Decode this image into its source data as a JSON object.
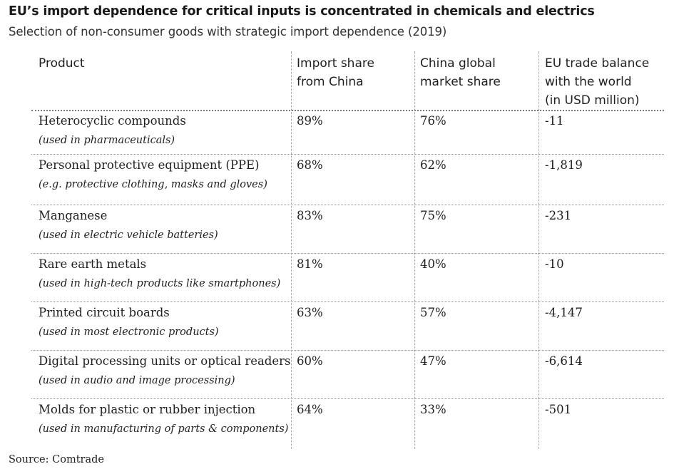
{
  "chart_data": {
    "type": "table",
    "title": "EU’s import dependence for critical inputs is concentrated in chemicals and electrics",
    "subtitle": "Selection of non-consumer goods with strategic import dependence (2019)",
    "columns": [
      "Product",
      "Import share\nfrom China",
      "China global\nmarket share",
      "EU trade balance\nwith the world\n(in USD million)"
    ],
    "rows": [
      {
        "product": "Heterocyclic compounds",
        "note": "(used in pharmaceuticals)",
        "import_share": "89%",
        "china_share": "76%",
        "balance": "-11"
      },
      {
        "product": "Personal protective equipment (PPE)",
        "note": "(e.g. protective clothing, masks and gloves)",
        "import_share": "68%",
        "china_share": "62%",
        "balance": "-1,819"
      },
      {
        "product": "Manganese",
        "note": "(used in electric vehicle batteries)",
        "import_share": "83%",
        "china_share": "75%",
        "balance": "-231"
      },
      {
        "product": "Rare earth metals",
        "note": "(used in high-tech products like smartphones)",
        "import_share": "81%",
        "china_share": "40%",
        "balance": "-10"
      },
      {
        "product": "Printed circuit boards",
        "note": "(used in most electronic products)",
        "import_share": "63%",
        "china_share": "57%",
        "balance": "-4,147"
      },
      {
        "product": "Digital processing units or optical readers",
        "note": "(used in audio and image processing)",
        "import_share": "60%",
        "china_share": "47%",
        "balance": "-6,614"
      },
      {
        "product": "Molds for plastic or rubber injection",
        "note": "(used in manufacturing of parts & components)",
        "import_share": "64%",
        "china_share": "33%",
        "balance": "-501"
      }
    ],
    "source": "Source: Comtrade"
  }
}
